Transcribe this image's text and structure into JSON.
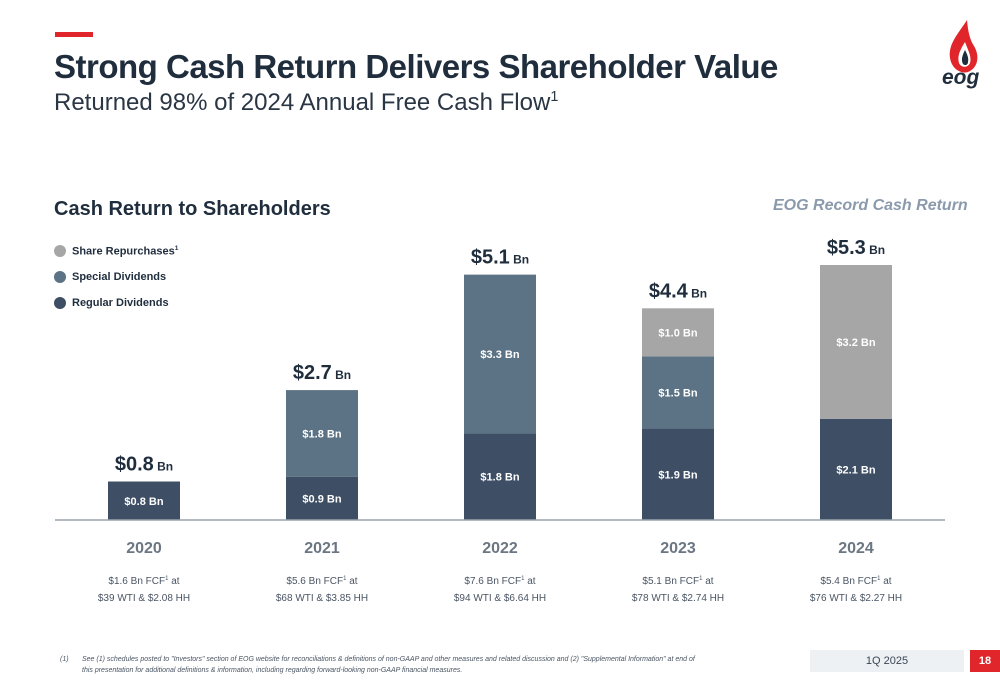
{
  "header": {
    "title": "Strong Cash Return Delivers Shareholder Value",
    "subtitle": "Returned 98% of 2024 Annual Free Cash Flow",
    "subtitle_sup": "1",
    "logo_text": "eog"
  },
  "section_title": "Cash Return to Shareholders",
  "record_note": "EOG Record Cash Return",
  "legend": [
    {
      "label": "Share Repurchases",
      "sup": "1",
      "color": "#a6a6a6"
    },
    {
      "label": "Special Dividends",
      "sup": "",
      "color": "#5b7384"
    },
    {
      "label": "Regular Dividends",
      "sup": "",
      "color": "#3e4e64"
    }
  ],
  "chart_data": {
    "type": "bar",
    "stacked": true,
    "categories": [
      "2020",
      "2021",
      "2022",
      "2023",
      "2024"
    ],
    "unit": "Bn",
    "ylim": [
      0,
      5.6
    ],
    "series": [
      {
        "name": "Regular Dividends",
        "color": "#3e4e64",
        "values": [
          0.8,
          0.9,
          1.8,
          1.9,
          2.1
        ],
        "labels": [
          "$0.8 Bn",
          "$0.9 Bn",
          "$1.8 Bn",
          "$1.9 Bn",
          "$2.1 Bn"
        ]
      },
      {
        "name": "Special Dividends",
        "color": "#5b7384",
        "values": [
          0,
          1.8,
          3.3,
          1.5,
          0
        ],
        "labels": [
          "",
          "$1.8 Bn",
          "$3.3 Bn",
          "$1.5 Bn",
          ""
        ]
      },
      {
        "name": "Share Repurchases",
        "color": "#a6a6a6",
        "values": [
          0,
          0,
          0,
          1.0,
          3.2
        ],
        "labels": [
          "",
          "",
          "",
          "$1.0 Bn",
          "$3.2 Bn"
        ]
      }
    ],
    "totals": [
      {
        "value": "$0.8",
        "unit": "Bn"
      },
      {
        "value": "$2.7",
        "unit": "Bn"
      },
      {
        "value": "$5.1",
        "unit": "Bn"
      },
      {
        "value": "$4.4",
        "unit": "Bn"
      },
      {
        "value": "$5.3",
        "unit": "Bn"
      }
    ],
    "notes": [
      {
        "line1": "$1.6 Bn FCF",
        "sup": "1",
        "line1_end": " at",
        "line2": "$39 WTI & $2.08 HH"
      },
      {
        "line1": "$5.6 Bn FCF",
        "sup": "1",
        "line1_end": " at",
        "line2": "$68 WTI & $3.85 HH"
      },
      {
        "line1": "$7.6 Bn FCF",
        "sup": "1",
        "line1_end": " at",
        "line2": "$94 WTI & $6.64 HH"
      },
      {
        "line1": "$5.1 Bn FCF",
        "sup": "1",
        "line1_end": " at",
        "line2": "$78 WTI & $2.74 HH"
      },
      {
        "line1": "$5.4 Bn FCF",
        "sup": "1",
        "line1_end": " at",
        "line2": "$76 WTI & $2.27 HH"
      }
    ]
  },
  "footer": {
    "footnote_label": "(1)",
    "footnote_text": "See (1) schedules posted to \"Investors\" section of EOG website for reconciliations & definitions of non-GAAP and other measures and related discussion and (2) \"Supplemental Information\" at end of this presentation for additional definitions & information, including regarding forward-looking non-GAAP financial measures.",
    "date": "1Q 2025",
    "page": "18"
  },
  "colors": {
    "accent": "#e0262b",
    "text": "#1f2d3d",
    "axis": "#9aa3ad"
  }
}
